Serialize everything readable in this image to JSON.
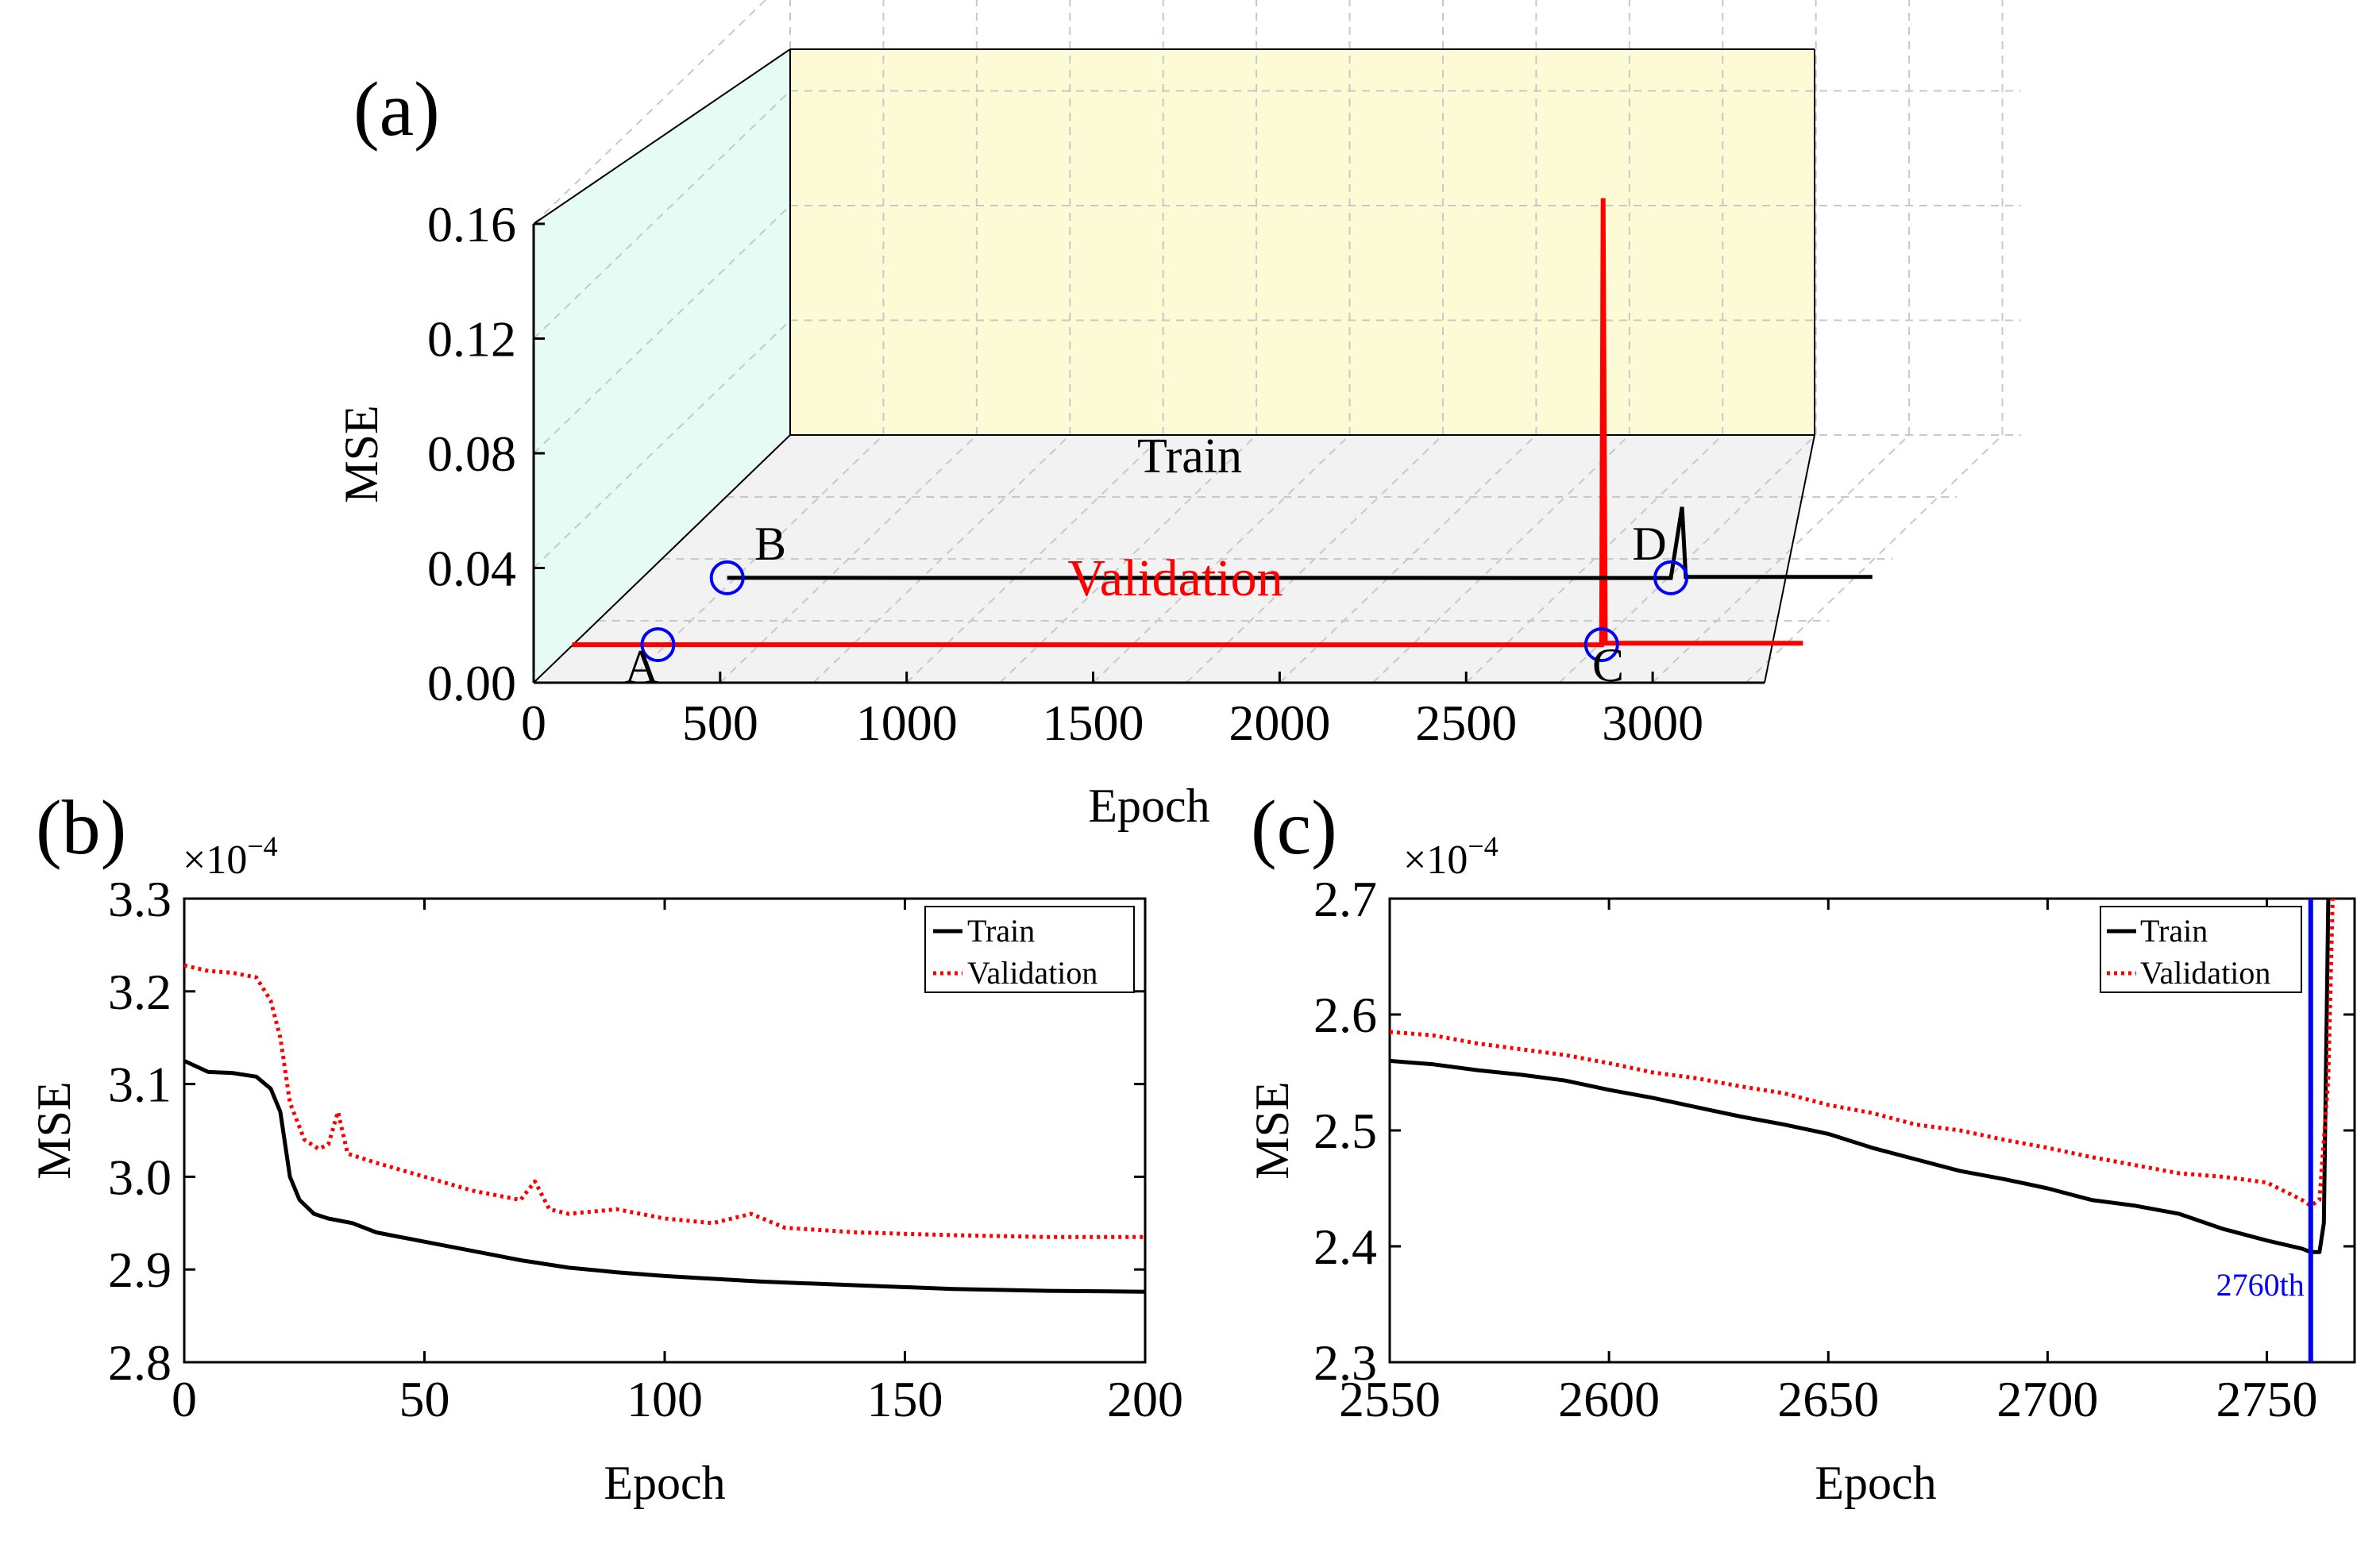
{
  "colors": {
    "train": "#000000",
    "validation": "#ff0000",
    "marker": "#0000ff",
    "back_wall": "#fdfbd6",
    "side_wall": "#e6fbf4",
    "floor": "#f2f2f2"
  },
  "chart_data": [
    {
      "panel_label": "(a)",
      "type": "line",
      "view": "3d",
      "xlabel": "Epoch",
      "ylabel": "MSE",
      "xlim": [
        0,
        3300
      ],
      "ylim": [
        0,
        0.16
      ],
      "x_ticks": [
        "0",
        "500",
        "1000",
        "1500",
        "2000",
        "2500",
        "3000"
      ],
      "y_ticks": [
        "0.00",
        "0.04",
        "0.08",
        "0.12",
        "0.16"
      ],
      "series": [
        {
          "name": "Train",
          "label": "Train",
          "points": [
            [
              230,
              0.0003
            ],
            [
              2760,
              0.00024
            ],
            [
              2790,
              0.025
            ],
            [
              2800,
              0.0006
            ],
            [
              3300,
              0.0006
            ]
          ]
        },
        {
          "name": "Validation",
          "label": "Validation",
          "points": [
            [
              0,
              0.0003
            ],
            [
              2760,
              0.00024
            ],
            [
              2764,
              0.156
            ],
            [
              2770,
              0.0008
            ],
            [
              3300,
              0.0008
            ]
          ]
        }
      ],
      "markers": [
        {
          "label": "A",
          "series": "Validation",
          "epoch": 230
        },
        {
          "label": "B",
          "series": "Train",
          "epoch": 230
        },
        {
          "label": "C",
          "series": "Validation",
          "epoch": 2760
        },
        {
          "label": "D",
          "series": "Train",
          "epoch": 2760
        }
      ]
    },
    {
      "panel_label": "(b)",
      "type": "line",
      "xlabel": "Epoch",
      "ylabel": "MSE",
      "scale_label": "×10",
      "scale_exp": "−4",
      "xlim": [
        0,
        200
      ],
      "ylim": [
        2.8,
        3.3
      ],
      "x_ticks": [
        "0",
        "50",
        "100",
        "150",
        "200"
      ],
      "y_ticks": [
        "2.8",
        "2.9",
        "3.0",
        "3.1",
        "3.2",
        "3.3"
      ],
      "legend_position": "top-right",
      "series": [
        {
          "name": "Train",
          "points": [
            [
              0,
              3.125
            ],
            [
              5,
              3.113
            ],
            [
              10,
              3.112
            ],
            [
              15,
              3.108
            ],
            [
              18,
              3.095
            ],
            [
              20,
              3.07
            ],
            [
              22,
              3.0
            ],
            [
              24,
              2.975
            ],
            [
              27,
              2.96
            ],
            [
              30,
              2.955
            ],
            [
              35,
              2.95
            ],
            [
              40,
              2.94
            ],
            [
              50,
              2.93
            ],
            [
              60,
              2.92
            ],
            [
              70,
              2.91
            ],
            [
              80,
              2.902
            ],
            [
              90,
              2.897
            ],
            [
              100,
              2.893
            ],
            [
              120,
              2.887
            ],
            [
              140,
              2.883
            ],
            [
              160,
              2.879
            ],
            [
              180,
              2.877
            ],
            [
              200,
              2.876
            ]
          ]
        },
        {
          "name": "Validation",
          "points": [
            [
              0,
              3.228
            ],
            [
              5,
              3.222
            ],
            [
              10,
              3.22
            ],
            [
              15,
              3.215
            ],
            [
              18,
              3.19
            ],
            [
              20,
              3.15
            ],
            [
              22,
              3.08
            ],
            [
              25,
              3.04
            ],
            [
              28,
              3.03
            ],
            [
              30,
              3.035
            ],
            [
              32,
              3.07
            ],
            [
              34,
              3.025
            ],
            [
              40,
              3.015
            ],
            [
              50,
              3.0
            ],
            [
              60,
              2.985
            ],
            [
              70,
              2.975
            ],
            [
              73,
              2.995
            ],
            [
              76,
              2.965
            ],
            [
              80,
              2.96
            ],
            [
              90,
              2.965
            ],
            [
              100,
              2.955
            ],
            [
              110,
              2.95
            ],
            [
              118,
              2.96
            ],
            [
              125,
              2.945
            ],
            [
              140,
              2.94
            ],
            [
              160,
              2.937
            ],
            [
              180,
              2.935
            ],
            [
              200,
              2.935
            ]
          ]
        }
      ]
    },
    {
      "panel_label": "(c)",
      "type": "line",
      "xlabel": "Epoch",
      "ylabel": "MSE",
      "scale_label": "×10",
      "scale_exp": "−4",
      "xlim": [
        2550,
        2770
      ],
      "ylim": [
        2.3,
        2.7
      ],
      "x_ticks": [
        "2550",
        "2600",
        "2650",
        "2700",
        "2750"
      ],
      "y_ticks": [
        "2.3",
        "2.4",
        "2.5",
        "2.6",
        "2.7"
      ],
      "legend_position": "top-right",
      "annotation": {
        "text": "2760th",
        "epoch": 2760
      },
      "series": [
        {
          "name": "Train",
          "points": [
            [
              2550,
              2.56
            ],
            [
              2560,
              2.557
            ],
            [
              2570,
              2.552
            ],
            [
              2580,
              2.548
            ],
            [
              2590,
              2.543
            ],
            [
              2600,
              2.535
            ],
            [
              2610,
              2.528
            ],
            [
              2620,
              2.52
            ],
            [
              2630,
              2.512
            ],
            [
              2640,
              2.505
            ],
            [
              2650,
              2.497
            ],
            [
              2660,
              2.485
            ],
            [
              2670,
              2.475
            ],
            [
              2680,
              2.465
            ],
            [
              2690,
              2.458
            ],
            [
              2700,
              2.45
            ],
            [
              2710,
              2.44
            ],
            [
              2720,
              2.435
            ],
            [
              2730,
              2.428
            ],
            [
              2740,
              2.415
            ],
            [
              2750,
              2.405
            ],
            [
              2758,
              2.398
            ],
            [
              2760,
              2.395
            ],
            [
              2762,
              2.395
            ],
            [
              2763,
              2.42
            ],
            [
              2764,
              2.7
            ]
          ]
        },
        {
          "name": "Validation",
          "points": [
            [
              2550,
              2.585
            ],
            [
              2560,
              2.582
            ],
            [
              2570,
              2.575
            ],
            [
              2580,
              2.57
            ],
            [
              2590,
              2.565
            ],
            [
              2600,
              2.558
            ],
            [
              2610,
              2.55
            ],
            [
              2620,
              2.545
            ],
            [
              2630,
              2.538
            ],
            [
              2640,
              2.532
            ],
            [
              2650,
              2.522
            ],
            [
              2660,
              2.515
            ],
            [
              2670,
              2.505
            ],
            [
              2680,
              2.5
            ],
            [
              2690,
              2.492
            ],
            [
              2700,
              2.485
            ],
            [
              2710,
              2.477
            ],
            [
              2720,
              2.47
            ],
            [
              2730,
              2.463
            ],
            [
              2740,
              2.46
            ],
            [
              2750,
              2.455
            ],
            [
              2758,
              2.44
            ],
            [
              2760,
              2.435
            ],
            [
              2762,
              2.44
            ],
            [
              2764,
              2.545
            ],
            [
              2765,
              2.7
            ]
          ]
        }
      ]
    }
  ]
}
